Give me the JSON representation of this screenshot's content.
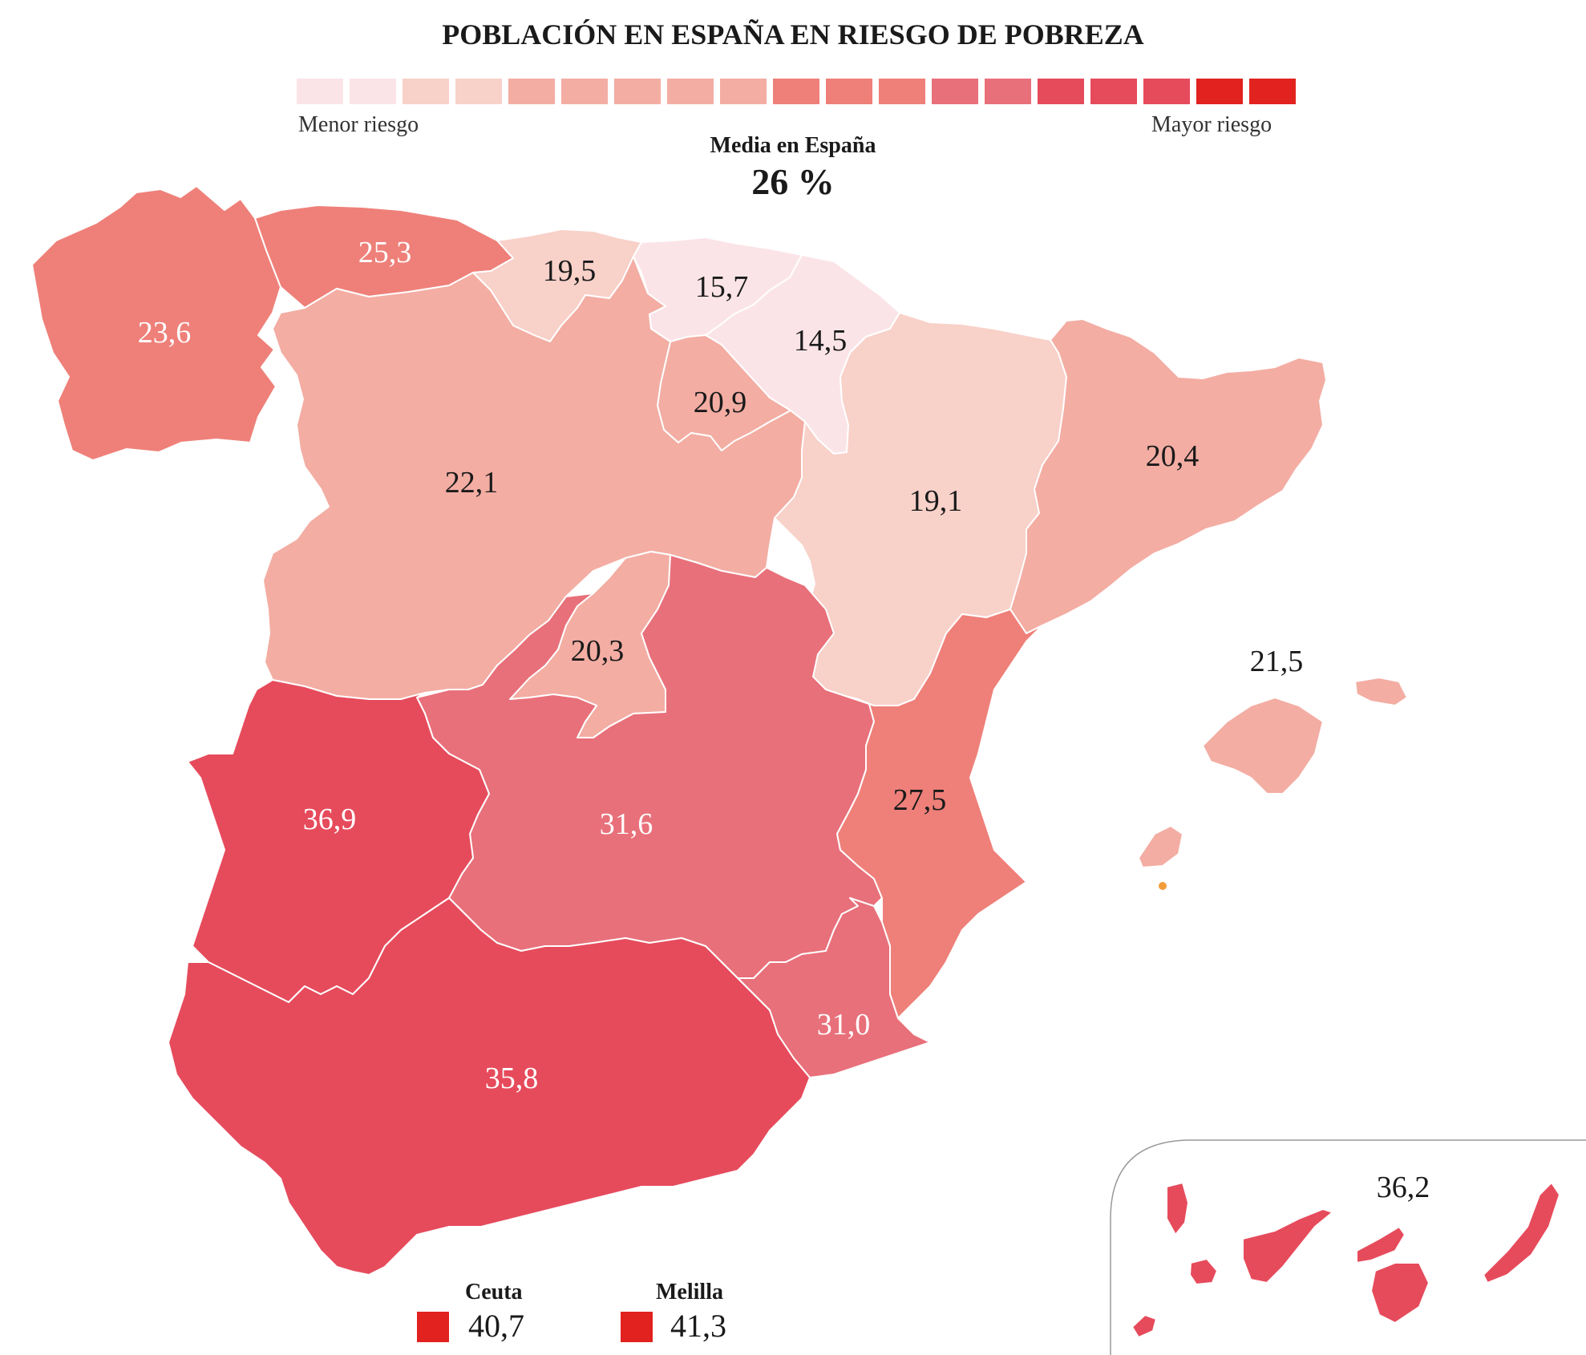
{
  "title": "POBLACIÓN EN ESPAÑA EN RIESGO DE POBREZA",
  "legend": {
    "low_label": "Menor riesgo",
    "high_label": "Mayor riesgo",
    "colors": [
      "#fbe4e8",
      "#fbe4e8",
      "#f8d1c9",
      "#f8d1c9",
      "#f3ada3",
      "#f3ada3",
      "#f3ada3",
      "#f3ada3",
      "#f3ada3",
      "#ee8079",
      "#ee8079",
      "#ee8079",
      "#e8707a",
      "#e8707a",
      "#e64b5c",
      "#e64b5c",
      "#e64b5c",
      "#e1221f",
      "#e1221f"
    ]
  },
  "average": {
    "label": "Media en España",
    "value": "26 %"
  },
  "regions": {
    "galicia": {
      "value": "23,6",
      "color": "#ee8079"
    },
    "asturias": {
      "value": "25,3",
      "color": "#ee8079"
    },
    "cantabria": {
      "value": "19,5",
      "color": "#f8d1c9"
    },
    "pais_vasco": {
      "value": "15,7",
      "color": "#fbe4e8"
    },
    "navarra": {
      "value": "14,5",
      "color": "#fbe4e8"
    },
    "la_rioja": {
      "value": "20,9",
      "color": "#f3ada3"
    },
    "castilla_leon": {
      "value": "22,1",
      "color": "#f3ada3"
    },
    "aragon": {
      "value": "19,1",
      "color": "#f8d1c9"
    },
    "cataluna": {
      "value": "20,4",
      "color": "#f3ada3"
    },
    "baleares": {
      "value": "21,5",
      "color": "#f3ada3"
    },
    "madrid": {
      "value": "20,3",
      "color": "#f3ada3"
    },
    "castilla_la_mancha": {
      "value": "31,6",
      "color": "#e8707a"
    },
    "valencia": {
      "value": "27,5",
      "color": "#ee8079"
    },
    "extremadura": {
      "value": "36,9",
      "color": "#e64b5c"
    },
    "murcia": {
      "value": "31,0",
      "color": "#e8707a"
    },
    "andalucia": {
      "value": "35,8",
      "color": "#e64b5c"
    },
    "canarias": {
      "value": "36,2",
      "color": "#e64b5c"
    }
  },
  "ceuta": {
    "label": "Ceuta",
    "value": "40,7",
    "color": "#e1221f"
  },
  "melilla": {
    "label": "Melilla",
    "value": "41,3",
    "color": "#e1221f"
  }
}
